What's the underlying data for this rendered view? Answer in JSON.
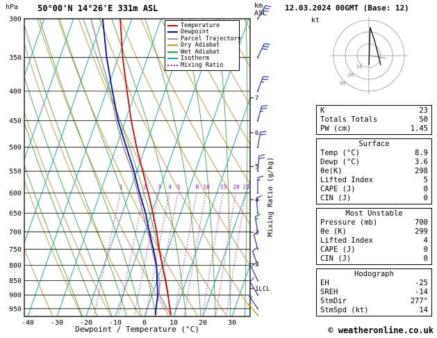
{
  "header": {
    "pressure_unit": "hPa",
    "station": "50°00'N 14°26'E 331m ASL",
    "km_label": "km",
    "asl_label": "ASL",
    "datetime": "12.03.2024 00GMT (Base: 12)"
  },
  "legend": [
    {
      "label": "Temperature",
      "color": "#dd0000",
      "dashed": false
    },
    {
      "label": "Dewpoint",
      "color": "#0000cc",
      "dashed": false
    },
    {
      "label": "Parcel Trajectory",
      "color": "#999999",
      "dashed": false
    },
    {
      "label": "Dry Adiabat",
      "color": "#cc8f33",
      "dashed": false
    },
    {
      "label": "Wet Adiabat",
      "color": "#22aa22",
      "dashed": false
    },
    {
      "label": "Isotherm",
      "color": "#00aaaa",
      "dashed": false
    },
    {
      "label": "Mixing Ratio",
      "color": "#cc00cc",
      "dashed": true
    }
  ],
  "axes": {
    "xlabel": "Dewpoint / Temperature (°C)",
    "mixing_ratio_label": "Mixing Ratio (g/kg)"
  },
  "colors": {
    "temperature": "#dd0000",
    "dewpoint": "#0000cc",
    "parcel": "#999999",
    "dry_adiabat": "#cc8f33",
    "wet_adiabat": "#22aa22",
    "isotherm": "#00aaaa",
    "mixing_ratio": "#cc00cc",
    "wind_barb": "#2233bb",
    "surface_wind_barb": "#cc8800",
    "grid": "#000000"
  },
  "table": {
    "sections": [
      {
        "name": "indices",
        "title": null,
        "rows": [
          {
            "label": "K",
            "value": "23"
          },
          {
            "label": "Totals Totals",
            "value": "50"
          },
          {
            "label": "PW (cm)",
            "value": "1.45"
          }
        ]
      },
      {
        "name": "surface",
        "title": "Surface",
        "rows": [
          {
            "label": "Temp (°C)",
            "value": "8.9"
          },
          {
            "label": "Dewp (°C)",
            "value": "3.6"
          },
          {
            "label": "θe(K)",
            "value": "298"
          },
          {
            "label": "Lifted Index",
            "value": "5"
          },
          {
            "label": "CAPE (J)",
            "value": "0"
          },
          {
            "label": "CIN (J)",
            "value": "0"
          }
        ]
      },
      {
        "name": "most-unstable",
        "title": "Most Unstable",
        "rows": [
          {
            "label": "Pressure (mb)",
            "value": "700"
          },
          {
            "label": "θe (K)",
            "value": "299"
          },
          {
            "label": "Lifted Index",
            "value": "4"
          },
          {
            "label": "CAPE (J)",
            "value": "0"
          },
          {
            "label": "CIN (J)",
            "value": "0"
          }
        ]
      },
      {
        "name": "hodograph",
        "title": "Hodograph",
        "rows": [
          {
            "label": "EH",
            "value": "-25"
          },
          {
            "label": "SREH",
            "value": "-14"
          },
          {
            "label": "StmDir",
            "value": "277°"
          },
          {
            "label": "StmSpd (kt)",
            "value": "14"
          }
        ]
      }
    ]
  },
  "footer": "© weatheronline.co.uk",
  "chart_data": {
    "type": "skewt-logp-sounding",
    "title": "50°00'N 14°26'E 331m ASL",
    "datetime": "12.03.2024 00GMT (Base: 12)",
    "pressure_range_hPa": [
      300,
      980
    ],
    "pressure_ticks": [
      300,
      350,
      400,
      450,
      500,
      550,
      600,
      650,
      700,
      750,
      800,
      850,
      900,
      950
    ],
    "temp_ticks": [
      -40,
      -30,
      -20,
      -10,
      0,
      10,
      20,
      30
    ],
    "mixing_ratio_lines": [
      1,
      2,
      3,
      4,
      5,
      8,
      10,
      15,
      20,
      25
    ],
    "km_ticks": [
      {
        "km": 7,
        "p": 411
      },
      {
        "km": 6,
        "p": 472
      },
      {
        "km": 5,
        "p": 540
      },
      {
        "km": 4,
        "p": 616
      },
      {
        "km": 3,
        "p": 701
      },
      {
        "km": 2,
        "p": 795
      }
    ],
    "lcl": {
      "p": 877,
      "label": "1LCL"
    },
    "pressure_hPa": [
      975,
      950,
      925,
      900,
      850,
      800,
      750,
      700,
      650,
      600,
      550,
      500,
      450,
      400,
      350,
      300
    ],
    "temperature_C": [
      8.9,
      7.8,
      6.6,
      5.5,
      3.0,
      0.0,
      -3.0,
      -6.0,
      -9.5,
      -13.5,
      -18.0,
      -23.0,
      -28.0,
      -33.0,
      -38.5,
      -44.0
    ],
    "dewpoint_C": [
      3.6,
      3.0,
      2.5,
      2.0,
      0.0,
      -2.0,
      -5.0,
      -8.5,
      -12.0,
      -16.5,
      -21.0,
      -26.5,
      -32.5,
      -38.0,
      -44.0,
      -50.0
    ],
    "parcel_C": [
      8.9,
      6.8,
      4.7,
      2.5,
      0.8,
      -2.2,
      -5.5,
      -9.0,
      -12.9,
      -17.1,
      -21.7,
      -27.5,
      -33.2,
      -38.7,
      -46.0,
      -54.0
    ],
    "wind_barbs_kt": [
      {
        "p": 300,
        "dir": 30,
        "spd": 35
      },
      {
        "p": 350,
        "dir": 25,
        "spd": 30
      },
      {
        "p": 400,
        "dir": 20,
        "spd": 25
      },
      {
        "p": 450,
        "dir": 15,
        "spd": 25
      },
      {
        "p": 500,
        "dir": 10,
        "spd": 20
      },
      {
        "p": 550,
        "dir": 5,
        "spd": 20
      },
      {
        "p": 600,
        "dir": 360,
        "spd": 15
      },
      {
        "p": 650,
        "dir": 355,
        "spd": 15
      },
      {
        "p": 700,
        "dir": 350,
        "spd": 15
      },
      {
        "p": 750,
        "dir": 345,
        "spd": 10
      },
      {
        "p": 800,
        "dir": 340,
        "spd": 10
      },
      {
        "p": 850,
        "dir": 335,
        "spd": 10
      },
      {
        "p": 900,
        "dir": 330,
        "spd": 10
      },
      {
        "p": 950,
        "dir": 325,
        "spd": 5
      },
      {
        "p": 975,
        "dir": 320,
        "spd": 5,
        "surface": true
      }
    ],
    "hodograph": {
      "unit": "kt",
      "rings_kt": [
        10,
        20,
        30
      ],
      "trace_uv_kt": [
        [
          0,
          -8
        ],
        [
          0.5,
          8
        ],
        [
          1,
          24
        ],
        [
          5,
          12
        ],
        [
          10,
          -8
        ]
      ],
      "storm_motion_uv_kt": [
        14,
        -2
      ]
    }
  }
}
